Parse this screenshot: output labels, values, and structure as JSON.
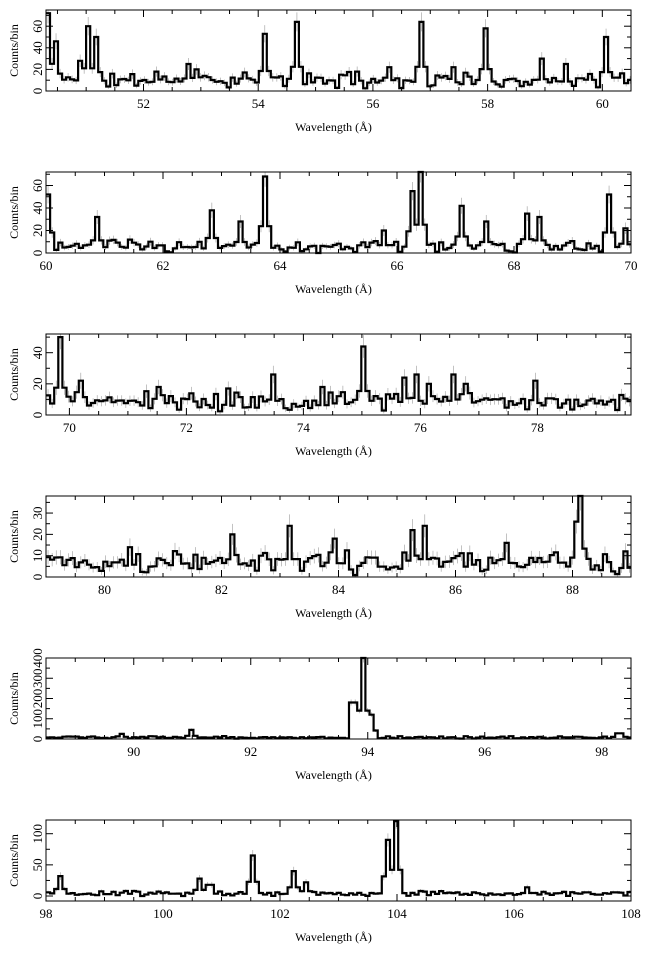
{
  "chart_data": [
    {
      "type": "line",
      "step": true,
      "xlabel": "Wavelength (Å)",
      "ylabel": "Counts/bin",
      "xlim": [
        50.3,
        60.5
      ],
      "ylim": [
        0,
        75
      ],
      "xticks": [
        52,
        54,
        56,
        58,
        60
      ],
      "yticks": [
        0,
        20,
        40,
        60
      ],
      "baseline": 10,
      "noise": 6,
      "seed": 11,
      "bin_width": 0.07,
      "peaks": [
        {
          "x": 50.35,
          "y": 72
        },
        {
          "x": 50.5,
          "y": 46
        },
        {
          "x": 50.9,
          "y": 28
        },
        {
          "x": 51.05,
          "y": 60
        },
        {
          "x": 51.2,
          "y": 50
        },
        {
          "x": 52.2,
          "y": 18
        },
        {
          "x": 52.75,
          "y": 25
        },
        {
          "x": 52.9,
          "y": 20
        },
        {
          "x": 54.1,
          "y": 53
        },
        {
          "x": 54.65,
          "y": 64
        },
        {
          "x": 55.7,
          "y": 18
        },
        {
          "x": 56.3,
          "y": 22
        },
        {
          "x": 56.85,
          "y": 64
        },
        {
          "x": 57.4,
          "y": 22
        },
        {
          "x": 57.95,
          "y": 58
        },
        {
          "x": 58.95,
          "y": 30
        },
        {
          "x": 59.35,
          "y": 25
        },
        {
          "x": 60.05,
          "y": 50
        }
      ]
    },
    {
      "type": "line",
      "step": true,
      "xlabel": "Wavelength (Å)",
      "ylabel": "Counts/bin",
      "xlim": [
        60,
        70
      ],
      "ylim": [
        0,
        72
      ],
      "xticks": [
        60,
        62,
        64,
        66,
        68,
        70
      ],
      "yticks": [
        0,
        20,
        40,
        60
      ],
      "baseline": 6,
      "noise": 5,
      "seed": 23,
      "bin_width": 0.07,
      "peaks": [
        {
          "x": 60.05,
          "y": 52
        },
        {
          "x": 60.9,
          "y": 32
        },
        {
          "x": 62.85,
          "y": 38
        },
        {
          "x": 63.3,
          "y": 28
        },
        {
          "x": 63.75,
          "y": 68
        },
        {
          "x": 65.8,
          "y": 20
        },
        {
          "x": 66.25,
          "y": 55
        },
        {
          "x": 66.4,
          "y": 72
        },
        {
          "x": 67.1,
          "y": 42
        },
        {
          "x": 67.5,
          "y": 28
        },
        {
          "x": 68.25,
          "y": 35
        },
        {
          "x": 68.4,
          "y": 32
        },
        {
          "x": 69.65,
          "y": 52
        },
        {
          "x": 69.9,
          "y": 22
        }
      ]
    },
    {
      "type": "line",
      "step": true,
      "xlabel": "Wavelength (Å)",
      "ylabel": "Counts/bin",
      "xlim": [
        69.6,
        79.6
      ],
      "ylim": [
        0,
        52
      ],
      "xticks": [
        70,
        72,
        74,
        76,
        78
      ],
      "yticks": [
        0,
        20,
        40
      ],
      "baseline": 9,
      "noise": 5,
      "seed": 37,
      "bin_width": 0.07,
      "peaks": [
        {
          "x": 69.85,
          "y": 50
        },
        {
          "x": 70.2,
          "y": 22
        },
        {
          "x": 71.5,
          "y": 18
        },
        {
          "x": 72.7,
          "y": 17
        },
        {
          "x": 73.45,
          "y": 26
        },
        {
          "x": 74.3,
          "y": 18
        },
        {
          "x": 75.05,
          "y": 44
        },
        {
          "x": 75.75,
          "y": 24
        },
        {
          "x": 75.95,
          "y": 26
        },
        {
          "x": 76.15,
          "y": 20
        },
        {
          "x": 76.55,
          "y": 26
        },
        {
          "x": 76.75,
          "y": 20
        },
        {
          "x": 77.95,
          "y": 22
        }
      ]
    },
    {
      "type": "line",
      "step": true,
      "xlabel": "Wavelength (Å)",
      "ylabel": "Counts/bin",
      "xlim": [
        79,
        89
      ],
      "ylim": [
        0,
        38
      ],
      "xticks": [
        80,
        82,
        84,
        86,
        88
      ],
      "yticks": [
        0,
        10,
        20,
        30
      ],
      "baseline": 7,
      "noise": 4.5,
      "seed": 41,
      "bin_width": 0.07,
      "peaks": [
        {
          "x": 80.4,
          "y": 14
        },
        {
          "x": 82.2,
          "y": 20
        },
        {
          "x": 83.15,
          "y": 24
        },
        {
          "x": 83.9,
          "y": 18
        },
        {
          "x": 85.25,
          "y": 22
        },
        {
          "x": 85.5,
          "y": 24
        },
        {
          "x": 86.85,
          "y": 16
        },
        {
          "x": 88.05,
          "y": 26
        },
        {
          "x": 88.15,
          "y": 38
        },
        {
          "x": 88.9,
          "y": 12
        }
      ]
    },
    {
      "type": "line",
      "step": true,
      "xlabel": "Wavelength (Å)",
      "ylabel": "Counts/bin",
      "xlim": [
        88.5,
        98.5
      ],
      "ylim": [
        0,
        400
      ],
      "xticks": [
        90,
        92,
        94,
        96,
        98
      ],
      "yticks": [
        0,
        100,
        200,
        300,
        400
      ],
      "baseline": 8,
      "noise": 5,
      "seed": 53,
      "bin_width": 0.07,
      "peaks": [
        {
          "x": 89.8,
          "y": 25
        },
        {
          "x": 91.0,
          "y": 45
        },
        {
          "x": 93.75,
          "y": 180
        },
        {
          "x": 93.9,
          "y": 400
        },
        {
          "x": 94.05,
          "y": 120
        },
        {
          "x": 98.3,
          "y": 28
        }
      ]
    },
    {
      "type": "line",
      "step": true,
      "xlabel": "Wavelength (Å)",
      "ylabel": "Counts/bin",
      "xlim": [
        98,
        108
      ],
      "ylim": [
        -8,
        122
      ],
      "xticks": [
        98,
        100,
        102,
        104,
        106,
        108
      ],
      "yticks": [
        0,
        50,
        100
      ],
      "baseline": 4,
      "noise": 3.5,
      "seed": 67,
      "bin_width": 0.07,
      "peaks": [
        {
          "x": 98.25,
          "y": 32
        },
        {
          "x": 100.65,
          "y": 28
        },
        {
          "x": 100.8,
          "y": 18
        },
        {
          "x": 101.55,
          "y": 65
        },
        {
          "x": 102.25,
          "y": 40
        },
        {
          "x": 102.45,
          "y": 22
        },
        {
          "x": 103.85,
          "y": 90
        },
        {
          "x": 103.95,
          "y": 120
        },
        {
          "x": 106.2,
          "y": 14
        }
      ]
    }
  ]
}
